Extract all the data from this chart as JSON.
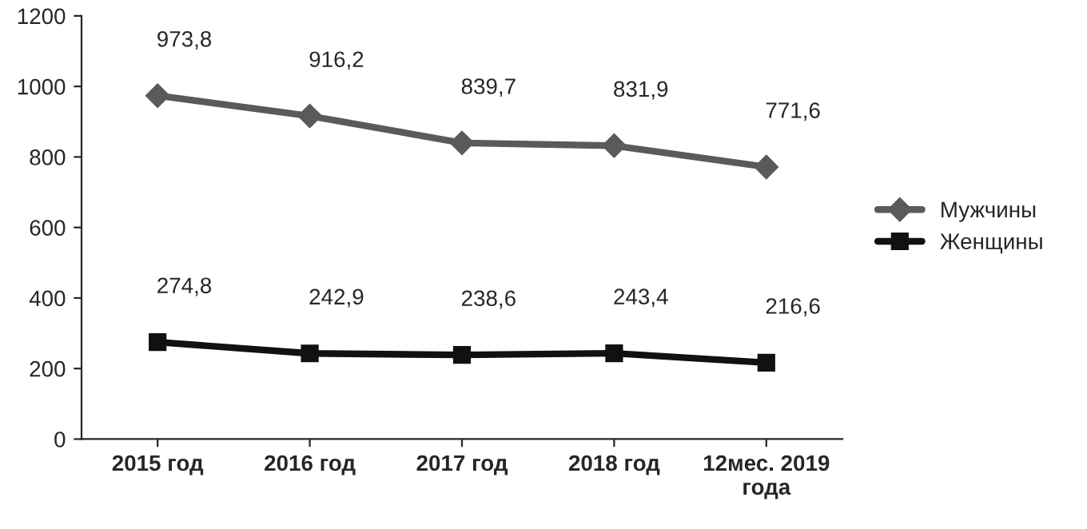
{
  "chart_data": {
    "type": "line",
    "categories": [
      "2015 год",
      "2016 год",
      "2017 год",
      "2018 год",
      "12мес. 2019\nгода"
    ],
    "series": [
      {
        "name": "Мужчины",
        "color": "#5a5a5a",
        "marker": "diamond",
        "values": [
          973.8,
          916.2,
          839.7,
          831.9,
          771.6
        ],
        "value_labels": [
          "973,8",
          "916,2",
          "839,7",
          "831,9",
          "771,6"
        ]
      },
      {
        "name": "Женщины",
        "color": "#111111",
        "marker": "square",
        "values": [
          274.8,
          242.9,
          238.6,
          243.4,
          216.6
        ],
        "value_labels": [
          "274,8",
          "242,9",
          "238,6",
          "243,4",
          "216,6"
        ]
      }
    ],
    "ylim": [
      0,
      1200
    ],
    "yticks": [
      0,
      200,
      400,
      600,
      800,
      1000,
      1200
    ],
    "grid": false,
    "legend": "right",
    "line_style": "solid"
  }
}
